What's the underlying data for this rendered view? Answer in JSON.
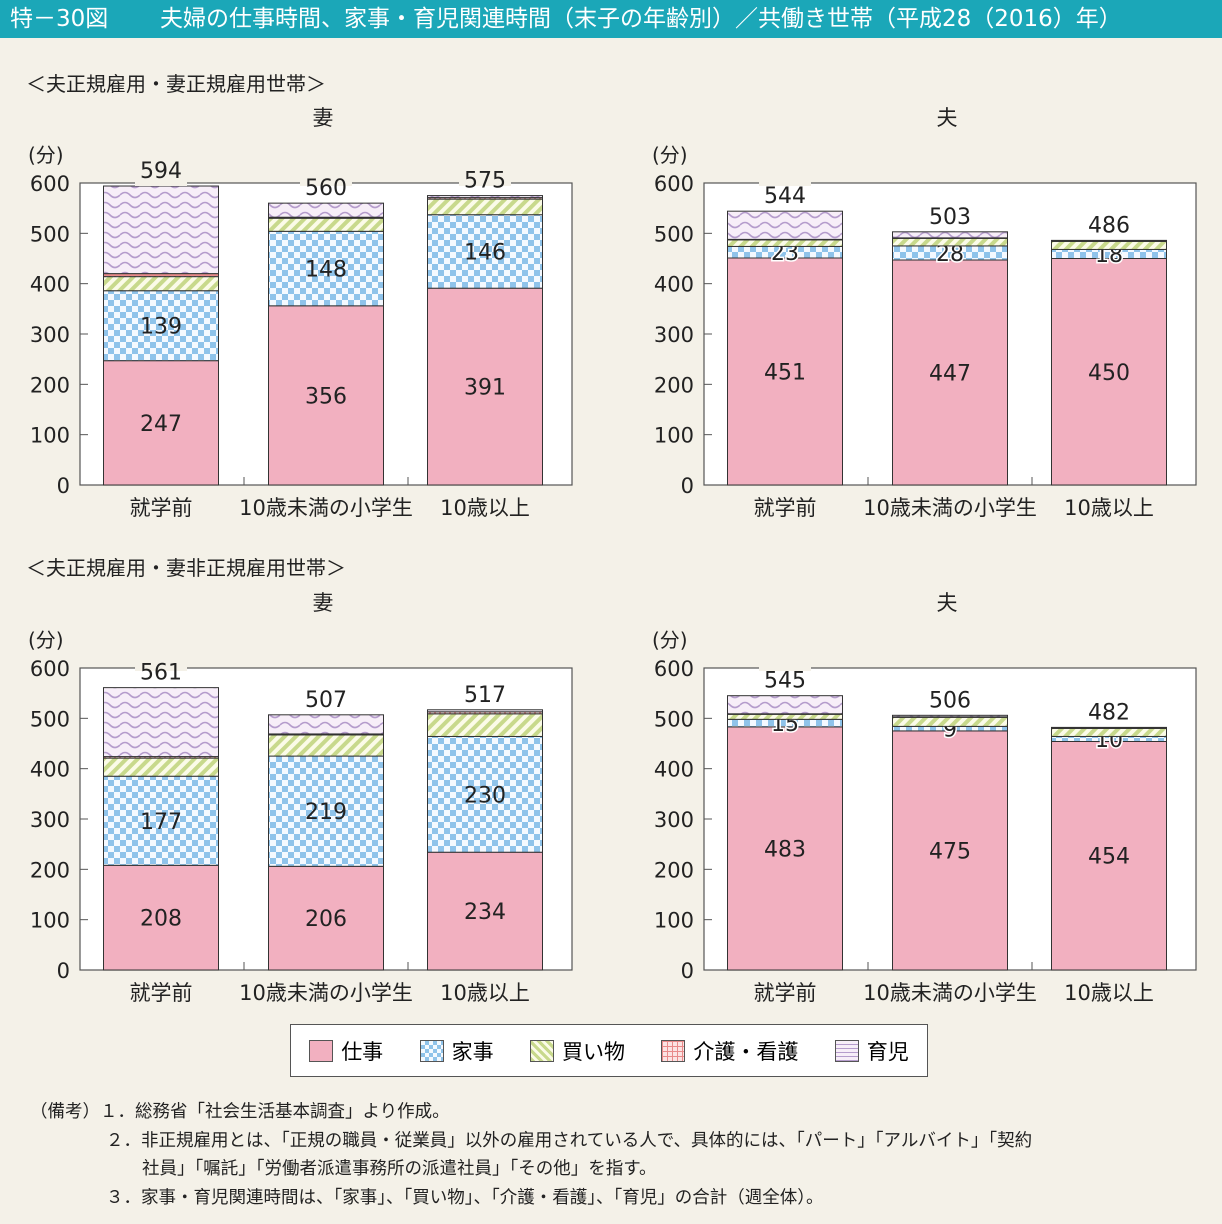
{
  "header": {
    "figure_no": "特－30図",
    "title": "夫婦の仕事時間、家事・育児関連時間（末子の年齢別）／共働き世帯（平成28（2016）年）"
  },
  "sections": [
    "＜夫正規雇用・妻正規雇用世帯＞",
    "＜夫正規雇用・妻非正規雇用世帯＞"
  ],
  "legend": [
    {
      "label": "仕事",
      "color": "#f2b0c0",
      "pattern": "solid"
    },
    {
      "label": "家事",
      "color": "#8fc3ea",
      "pattern": "checker"
    },
    {
      "label": "買い物",
      "color": "#c8d98c",
      "pattern": "diagonal"
    },
    {
      "label": "介護・看護",
      "color": "#e88a8a",
      "pattern": "grid"
    },
    {
      "label": "育児",
      "color": "#b59ccc",
      "pattern": "wave"
    }
  ],
  "chart_data": [
    {
      "type": "bar",
      "stacked": true,
      "title": "妻",
      "ylabel": "(分)",
      "ylim": [
        0,
        600
      ],
      "yticks": [
        0,
        100,
        200,
        300,
        400,
        500,
        600
      ],
      "categories": [
        "就学前",
        "10歳未満の小学生",
        "10歳以上"
      ],
      "series": [
        {
          "name": "仕事",
          "values": [
            247,
            356,
            391
          ]
        },
        {
          "name": "家事",
          "values": [
            139,
            148,
            146
          ]
        },
        {
          "name": "買い物",
          "values": [
            28,
            26,
            31
          ]
        },
        {
          "name": "介護・看護",
          "values": [
            6,
            2,
            3
          ]
        },
        {
          "name": "育児",
          "values": [
            174,
            28,
            4
          ]
        }
      ],
      "totals": [
        594,
        560,
        575
      ]
    },
    {
      "type": "bar",
      "stacked": true,
      "title": "夫",
      "ylabel": "(分)",
      "ylim": [
        0,
        600
      ],
      "yticks": [
        0,
        100,
        200,
        300,
        400,
        500,
        600
      ],
      "categories": [
        "就学前",
        "10歳未満の小学生",
        "10歳以上"
      ],
      "series": [
        {
          "name": "仕事",
          "values": [
            451,
            447,
            450
          ]
        },
        {
          "name": "家事",
          "values": [
            23,
            28,
            18
          ]
        },
        {
          "name": "買い物",
          "values": [
            13,
            15,
            16
          ]
        },
        {
          "name": "介護・看護",
          "values": [
            1,
            1,
            1
          ]
        },
        {
          "name": "育児",
          "values": [
            56,
            12,
            1
          ]
        }
      ],
      "totals": [
        544,
        503,
        486
      ]
    },
    {
      "type": "bar",
      "stacked": true,
      "title": "妻",
      "ylabel": "(分)",
      "ylim": [
        0,
        600
      ],
      "yticks": [
        0,
        100,
        200,
        300,
        400,
        500,
        600
      ],
      "categories": [
        "就学前",
        "10歳未満の小学生",
        "10歳以上"
      ],
      "series": [
        {
          "name": "仕事",
          "values": [
            208,
            206,
            234
          ]
        },
        {
          "name": "家事",
          "values": [
            177,
            219,
            230
          ]
        },
        {
          "name": "買い物",
          "values": [
            36,
            42,
            45
          ]
        },
        {
          "name": "介護・看護",
          "values": [
            3,
            2,
            4
          ]
        },
        {
          "name": "育児",
          "values": [
            137,
            38,
            4
          ]
        }
      ],
      "totals": [
        561,
        507,
        517
      ]
    },
    {
      "type": "bar",
      "stacked": true,
      "title": "夫",
      "ylabel": "(分)",
      "ylim": [
        0,
        600
      ],
      "yticks": [
        0,
        100,
        200,
        300,
        400,
        500,
        600
      ],
      "categories": [
        "就学前",
        "10歳未満の小学生",
        "10歳以上"
      ],
      "series": [
        {
          "name": "仕事",
          "values": [
            483,
            475,
            454
          ]
        },
        {
          "name": "家事",
          "values": [
            15,
            9,
            10
          ]
        },
        {
          "name": "買い物",
          "values": [
            10,
            18,
            16
          ]
        },
        {
          "name": "介護・看護",
          "values": [
            1,
            1,
            1
          ]
        },
        {
          "name": "育児",
          "values": [
            36,
            3,
            1
          ]
        }
      ],
      "totals": [
        545,
        506,
        482
      ]
    }
  ],
  "notes": [
    "（備考）１．総務省「社会生活基本調査」より作成。",
    "２．非正規雇用とは、「正規の職員・従業員」以外の雇用されている人で、具体的には、「パート」「アルバイト」「契約",
    "社員」「嘱託」「労働者派遣事務所の派遣社員」「その他」を指す。",
    "３．家事・育児関連時間は、「家事」、「買い物」、「介護・看護」、「育児」の合計（週全体）。"
  ]
}
